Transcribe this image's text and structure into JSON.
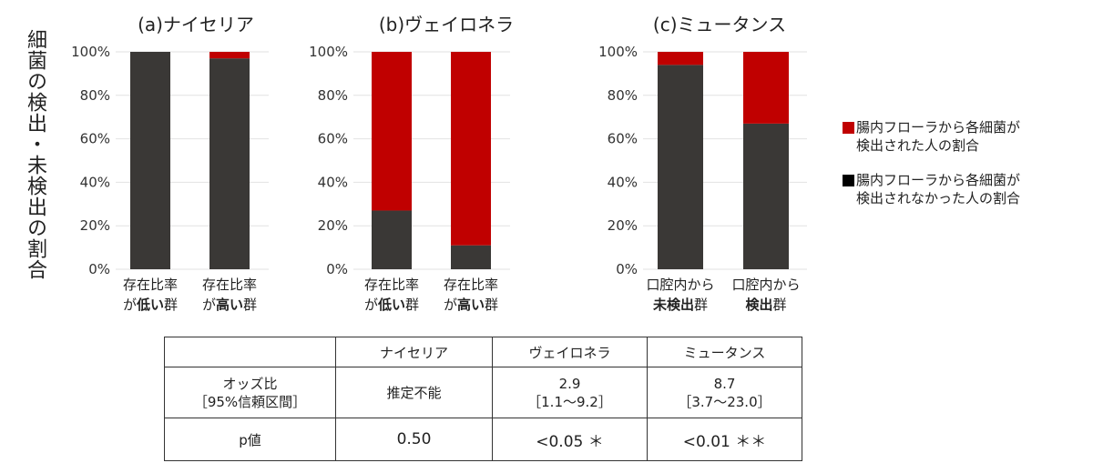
{
  "y_axis_label": "細菌の検出・未検出の割合",
  "legend": [
    {
      "label_line1": "腸内フローラから各細菌が",
      "label_line2": "検出された人の割合",
      "color": "#c00000"
    },
    {
      "label_line1": "腸内フローラから各細菌が",
      "label_line2": "検出されなかった人の割合",
      "color": "#000000"
    }
  ],
  "chart_data": [
    {
      "type": "bar",
      "stacked": true,
      "title": "(a)ナイセリア",
      "ylim": [
        0,
        100
      ],
      "yticks": [
        "0%",
        "20%",
        "40%",
        "60%",
        "80%",
        "100%"
      ],
      "grid": true,
      "categories": [
        {
          "line1": "存在比率",
          "line2": [
            {
              "t": "が",
              "b": false
            },
            {
              "t": "低い",
              "b": true
            },
            {
              "t": "群",
              "b": false
            }
          ]
        },
        {
          "line1": "存在比率",
          "line2": [
            {
              "t": "が",
              "b": false
            },
            {
              "t": "高い",
              "b": true
            },
            {
              "t": "群",
              "b": false
            }
          ]
        }
      ],
      "series": [
        {
          "key": "not_detected",
          "color": "#3a3836",
          "values": [
            100,
            97
          ]
        },
        {
          "key": "detected",
          "color": "#c00000",
          "values": [
            0,
            3
          ]
        }
      ]
    },
    {
      "type": "bar",
      "stacked": true,
      "title": "(b)ヴェイロネラ",
      "ylim": [
        0,
        100
      ],
      "yticks": [
        "0%",
        "20%",
        "40%",
        "60%",
        "80%",
        "100%"
      ],
      "grid": true,
      "categories": [
        {
          "line1": "存在比率",
          "line2": [
            {
              "t": "が",
              "b": false
            },
            {
              "t": "低い",
              "b": true
            },
            {
              "t": "群",
              "b": false
            }
          ]
        },
        {
          "line1": "存在比率",
          "line2": [
            {
              "t": "が",
              "b": false
            },
            {
              "t": "高い",
              "b": true
            },
            {
              "t": "群",
              "b": false
            }
          ]
        }
      ],
      "series": [
        {
          "key": "not_detected",
          "color": "#3a3836",
          "values": [
            27,
            11
          ]
        },
        {
          "key": "detected",
          "color": "#c00000",
          "values": [
            73,
            89
          ]
        }
      ]
    },
    {
      "type": "bar",
      "stacked": true,
      "title": "(c)ミュータンス",
      "ylim": [
        0,
        100
      ],
      "yticks": [
        "0%",
        "20%",
        "40%",
        "60%",
        "80%",
        "100%"
      ],
      "grid": true,
      "categories": [
        {
          "line1": "口腔内から",
          "line2": [
            {
              "t": "未検出",
              "b": true
            },
            {
              "t": "群",
              "b": false
            }
          ]
        },
        {
          "line1": "口腔内から",
          "line2": [
            {
              "t": "検出",
              "b": true
            },
            {
              "t": "群",
              "b": false
            }
          ]
        }
      ],
      "series": [
        {
          "key": "not_detected",
          "color": "#3a3836",
          "values": [
            94,
            67
          ]
        },
        {
          "key": "detected",
          "color": "#c00000",
          "values": [
            6,
            33
          ]
        }
      ]
    }
  ],
  "table": {
    "headers": [
      "",
      "ナイセリア",
      "ヴェイロネラ",
      "ミュータンス"
    ],
    "odds_label_line1": "オッズ比",
    "odds_label_line2": "［95%信頼区間］",
    "odds": [
      {
        "line1": "推定不能",
        "line2": ""
      },
      {
        "line1": "2.9",
        "line2": "［1.1～9.2］"
      },
      {
        "line1": "8.7",
        "line2": "［3.7～23.0］"
      }
    ],
    "p_label": "p値",
    "p_values": [
      "0.50",
      "<0.05 ＊",
      "<0.01 ＊＊"
    ]
  }
}
